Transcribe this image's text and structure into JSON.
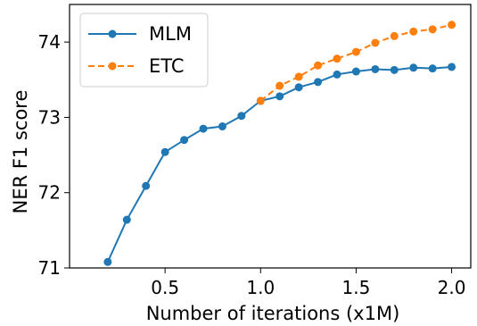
{
  "chart_data": {
    "type": "line",
    "xlabel": "Number of iterations (x1M)",
    "ylabel": "NER F1 score",
    "xlim": [
      0.0,
      2.1
    ],
    "ylim": [
      71.0,
      74.5
    ],
    "xticks": [
      0.5,
      1.0,
      1.5,
      2.0
    ],
    "xtick_labels": [
      "0.5",
      "1.0",
      "1.5",
      "2.0"
    ],
    "yticks": [
      71,
      72,
      73,
      74
    ],
    "ytick_labels": [
      "71",
      "72",
      "73",
      "74"
    ],
    "grid": false,
    "legend_position": "top-left",
    "series": [
      {
        "name": "MLM",
        "color": "#1f77b4",
        "line_style": "solid",
        "marker": "circle",
        "x": [
          0.2,
          0.3,
          0.4,
          0.5,
          0.6,
          0.7,
          0.8,
          0.9,
          1.0,
          1.1,
          1.2,
          1.3,
          1.4,
          1.5,
          1.6,
          1.7,
          1.8,
          1.9,
          2.0
        ],
        "y": [
          71.08,
          71.64,
          72.09,
          72.54,
          72.7,
          72.85,
          72.88,
          73.02,
          73.22,
          73.28,
          73.4,
          73.47,
          73.57,
          73.61,
          73.64,
          73.63,
          73.66,
          73.65,
          73.67
        ]
      },
      {
        "name": "ETC",
        "color": "#ff7f0e",
        "line_style": "dashed",
        "marker": "circle",
        "x": [
          1.0,
          1.1,
          1.2,
          1.3,
          1.4,
          1.5,
          1.6,
          1.7,
          1.8,
          1.9,
          2.0
        ],
        "y": [
          73.22,
          73.42,
          73.54,
          73.69,
          73.78,
          73.87,
          73.99,
          74.08,
          74.14,
          74.17,
          74.23
        ]
      }
    ]
  }
}
